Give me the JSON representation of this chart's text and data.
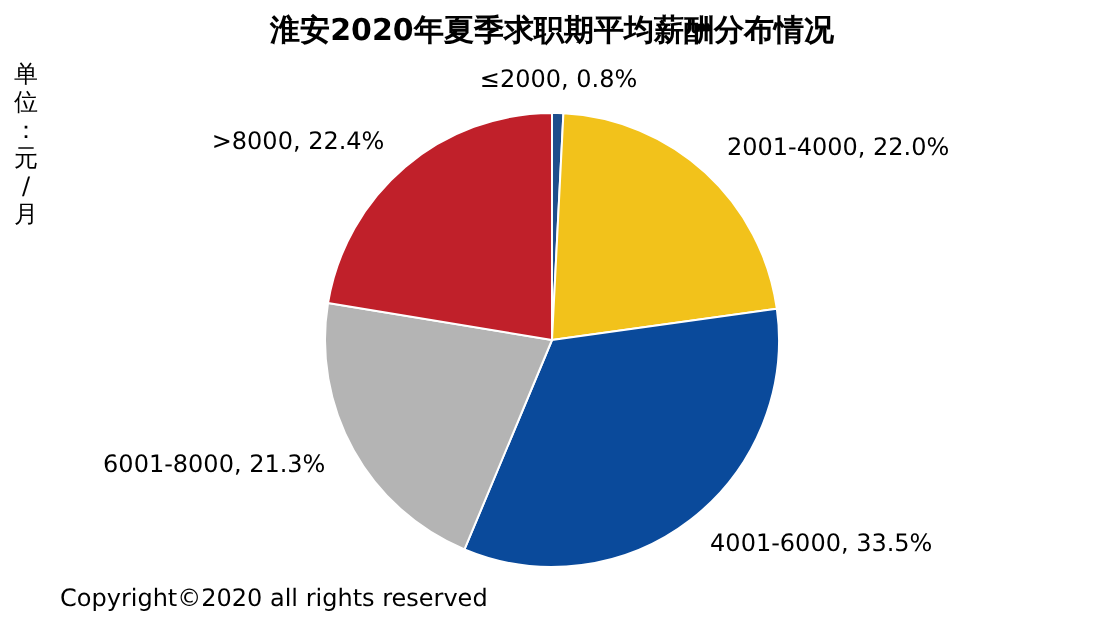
{
  "chart_data": {
    "type": "pie",
    "title": "淮安2020年夏季求职期平均薪酬分布情况",
    "categories": [
      "≤2000",
      "2001-4000",
      "4001-6000",
      "6001-8000",
      ">8000"
    ],
    "values": [
      0.8,
      22.0,
      33.5,
      21.3,
      22.4
    ],
    "colors": [
      "#1f4e8c",
      "#f2c21b",
      "#0a4a9b",
      "#b4b4b4",
      "#c0202a"
    ],
    "value_labels": [
      "0.8%",
      "22.0%",
      "33.5%",
      "21.3%",
      "22.4%"
    ],
    "legend": false,
    "annotations": [
      "单位：元/月",
      "Copyright©2020 all rights reserved"
    ]
  }
}
